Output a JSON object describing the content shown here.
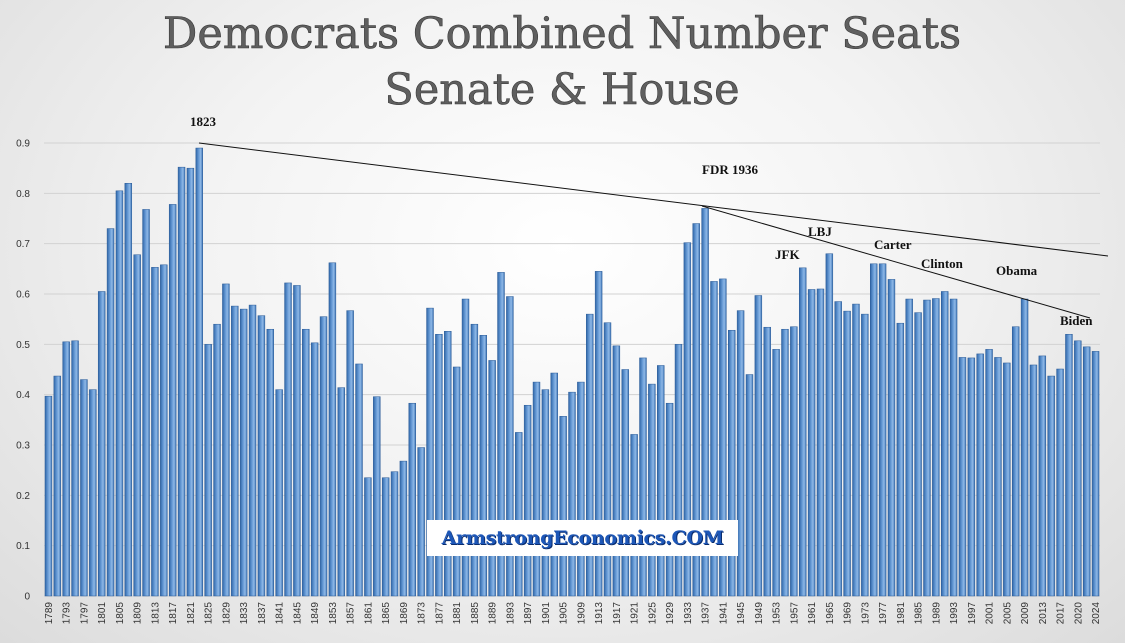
{
  "chart_data": {
    "type": "bar",
    "title": "Democrats Combined Number Seats",
    "subtitle": "Senate & House",
    "ylim": [
      0,
      0.9
    ],
    "yticks": [
      "0",
      "0.1",
      "0.2",
      "0.3",
      "0.4",
      "0.5",
      "0.6",
      "0.7",
      "0.8",
      "0.9"
    ],
    "grid": true,
    "categories": [
      "1789",
      "1791",
      "1793",
      "1795",
      "1797",
      "1799",
      "1801",
      "1803",
      "1805",
      "1807",
      "1809",
      "1811",
      "1813",
      "1815",
      "1817",
      "1819",
      "1821",
      "1823",
      "1825",
      "1827",
      "1829",
      "1831",
      "1833",
      "1835",
      "1837",
      "1839",
      "1841",
      "1843",
      "1845",
      "1847",
      "1849",
      "1851",
      "1853",
      "1855",
      "1857",
      "1859",
      "1861",
      "1863",
      "1865",
      "1867",
      "1869",
      "1871",
      "1873",
      "1875",
      "1877",
      "1879",
      "1881",
      "1883",
      "1885",
      "1887",
      "1889",
      "1891",
      "1893",
      "1895",
      "1897",
      "1899",
      "1901",
      "1903",
      "1905",
      "1907",
      "1909",
      "1911",
      "1913",
      "1915",
      "1917",
      "1919",
      "1921",
      "1923",
      "1925",
      "1927",
      "1929",
      "1931",
      "1933",
      "1935",
      "1937",
      "1939",
      "1941",
      "1943",
      "1945",
      "1947",
      "1949",
      "1951",
      "1953",
      "1955",
      "1957",
      "1959",
      "1961",
      "1963",
      "1965",
      "1967",
      "1969",
      "1971",
      "1973",
      "1975",
      "1977",
      "1979",
      "1981",
      "1983",
      "1985",
      "1987",
      "1989",
      "1991",
      "1993",
      "1995",
      "1997",
      "1999",
      "2001",
      "2003",
      "2005",
      "2007",
      "2009",
      "2011",
      "2013",
      "2015",
      "2017",
      "2019",
      "2020",
      "2022",
      "2024"
    ],
    "xtick_labels": [
      "1789",
      "1793",
      "1797",
      "1801",
      "1805",
      "1809",
      "1813",
      "1817",
      "1821",
      "1825",
      "1829",
      "1833",
      "1837",
      "1841",
      "1845",
      "1849",
      "1853",
      "1857",
      "1861",
      "1865",
      "1869",
      "1873",
      "1877",
      "1881",
      "1885",
      "1889",
      "1893",
      "1897",
      "1901",
      "1905",
      "1909",
      "1913",
      "1917",
      "1921",
      "1925",
      "1929",
      "1933",
      "1937",
      "1941",
      "1945",
      "1949",
      "1953",
      "1957",
      "1961",
      "1965",
      "1969",
      "1973",
      "1977",
      "1981",
      "1985",
      "1989",
      "1993",
      "1997",
      "2001",
      "2005",
      "2009",
      "2013",
      "2017",
      "2020",
      "2024"
    ],
    "values": [
      0.397,
      0.437,
      0.505,
      0.507,
      0.43,
      0.41,
      0.605,
      0.73,
      0.805,
      0.82,
      0.678,
      0.768,
      0.653,
      0.658,
      0.778,
      0.852,
      0.85,
      0.89,
      0.5,
      0.54,
      0.62,
      0.576,
      0.57,
      0.578,
      0.557,
      0.53,
      0.41,
      0.622,
      0.617,
      0.53,
      0.503,
      0.555,
      0.662,
      0.414,
      0.567,
      0.461,
      0.235,
      0.396,
      0.235,
      0.247,
      0.268,
      0.383,
      0.295,
      0.572,
      0.52,
      0.526,
      0.455,
      0.59,
      0.54,
      0.518,
      0.468,
      0.643,
      0.595,
      0.325,
      0.379,
      0.425,
      0.41,
      0.443,
      0.357,
      0.405,
      0.425,
      0.56,
      0.645,
      0.543,
      0.497,
      0.45,
      0.321,
      0.473,
      0.421,
      0.458,
      0.383,
      0.5,
      0.702,
      0.74,
      0.77,
      0.625,
      0.63,
      0.528,
      0.567,
      0.44,
      0.597,
      0.534,
      0.49,
      0.53,
      0.535,
      0.652,
      0.609,
      0.61,
      0.68,
      0.585,
      0.566,
      0.58,
      0.56,
      0.66,
      0.66,
      0.629,
      0.542,
      0.59,
      0.563,
      0.588,
      0.591,
      0.605,
      0.59,
      0.474,
      0.473,
      0.481,
      0.49,
      0.474,
      0.463,
      0.535,
      0.59,
      0.459,
      0.477,
      0.437,
      0.451,
      0.52,
      0.507,
      0.495,
      0.486
    ],
    "annotations": {
      "a1823": "1823",
      "fdr": "FDR 1936",
      "jfk": "JFK",
      "lbj": "LBJ",
      "carter": "Carter",
      "clinton": "Clinton",
      "obama": "Obama",
      "biden": "Biden"
    },
    "bar_color": "#4f86c6"
  },
  "watermark": "ArmstrongEconomics.COM"
}
